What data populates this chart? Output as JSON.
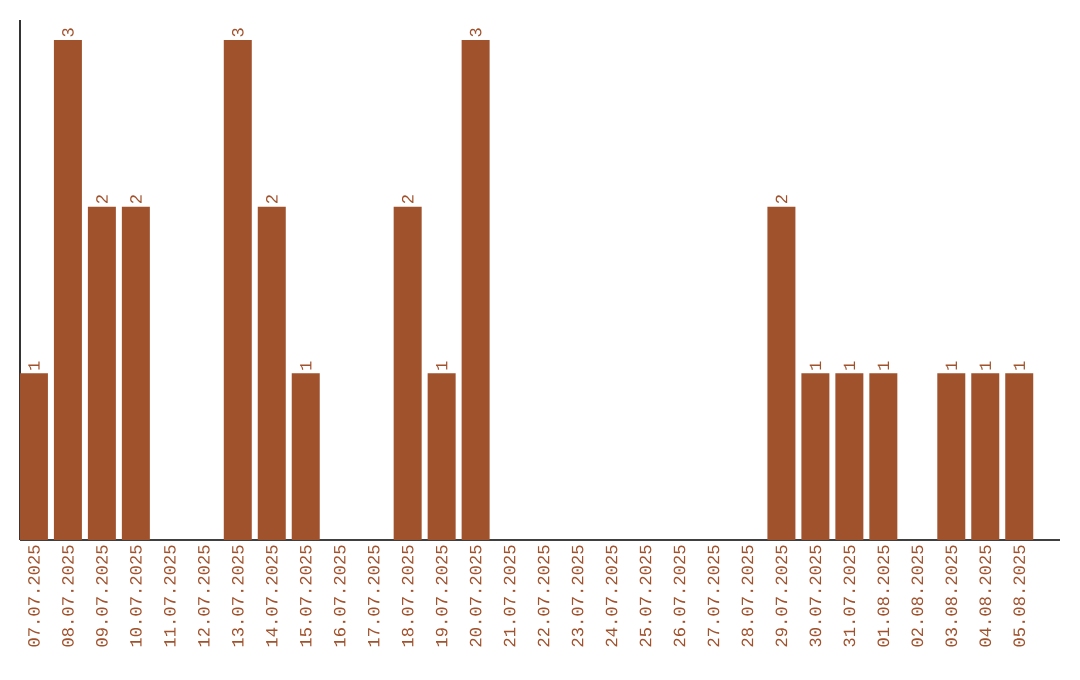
{
  "chart_data": {
    "type": "bar",
    "color": "#a0522d",
    "categories": [
      "07.07.2025",
      "08.07.2025",
      "09.07.2025",
      "10.07.2025",
      "11.07.2025",
      "12.07.2025",
      "13.07.2025",
      "14.07.2025",
      "15.07.2025",
      "16.07.2025",
      "17.07.2025",
      "18.07.2025",
      "19.07.2025",
      "20.07.2025",
      "21.07.2025",
      "22.07.2025",
      "23.07.2025",
      "24.07.2025",
      "25.07.2025",
      "26.07.2025",
      "27.07.2025",
      "28.07.2025",
      "29.07.2025",
      "30.07.2025",
      "31.07.2025",
      "01.08.2025",
      "02.08.2025",
      "03.08.2025",
      "04.08.2025",
      "05.08.2025"
    ],
    "values": [
      1,
      3,
      2,
      2,
      0,
      0,
      3,
      2,
      1,
      0,
      0,
      2,
      1,
      3,
      0,
      0,
      0,
      0,
      0,
      0,
      0,
      0,
      2,
      1,
      1,
      1,
      0,
      1,
      1,
      1
    ],
    "value_labels": [
      "1",
      "3",
      "2",
      "2",
      null,
      null,
      "3",
      "2",
      "1",
      null,
      null,
      "2",
      "1",
      "3",
      null,
      null,
      null,
      null,
      null,
      null,
      null,
      null,
      "2",
      "1",
      "1",
      "1",
      null,
      "1",
      "1",
      "1"
    ],
    "grid": false
  }
}
